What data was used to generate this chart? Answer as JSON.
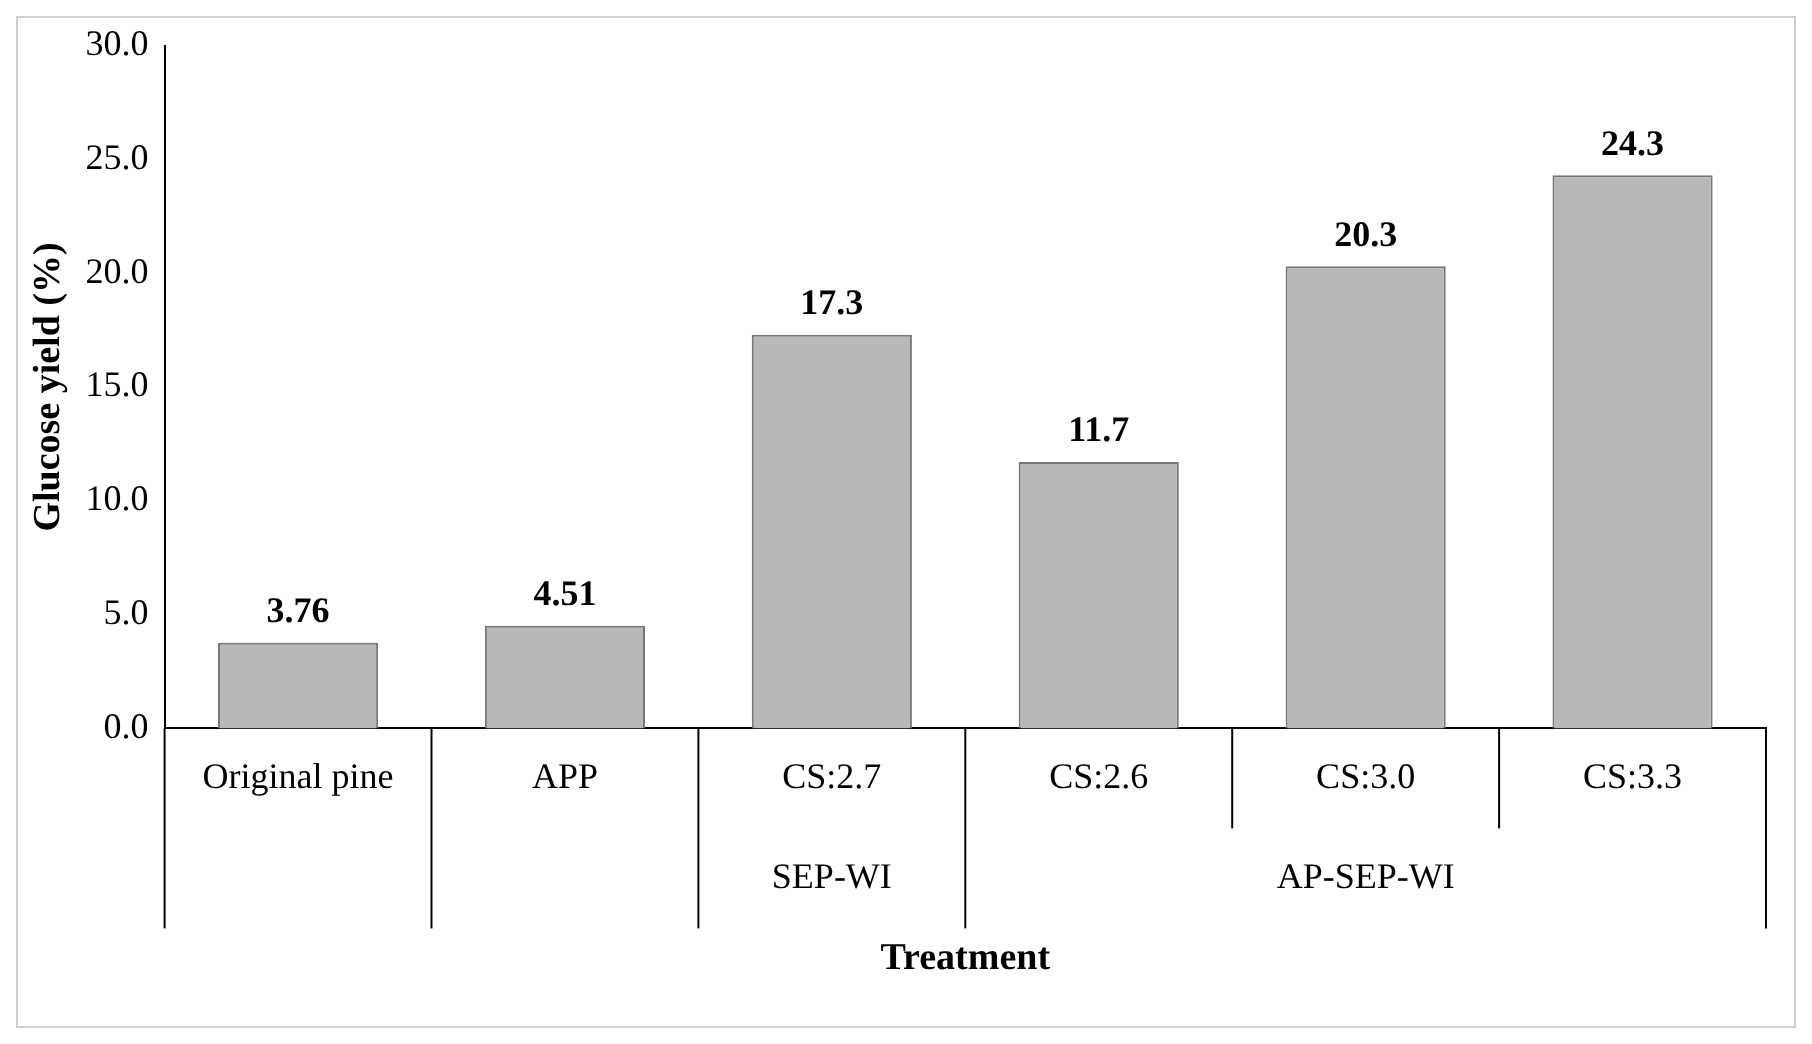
{
  "chart_data": {
    "type": "bar",
    "xlabel": "Treatment",
    "ylabel": "Glucose yield (%)",
    "categories": [
      "Original pine",
      "APP",
      "CS:2.7",
      "CS:2.6",
      "CS:3.0",
      "CS:3.3"
    ],
    "values": [
      3.76,
      4.51,
      17.3,
      11.7,
      20.3,
      24.3
    ],
    "color": "#b8b8b8",
    "data_labels": true,
    "ylim": [
      0,
      30
    ],
    "yticks": [
      {
        "value": 0,
        "label": "0.0"
      },
      {
        "value": 5,
        "label": "5.0"
      },
      {
        "value": 10,
        "label": "10.0"
      },
      {
        "value": 15,
        "label": "15.0"
      },
      {
        "value": 20,
        "label": "20.0"
      },
      {
        "value": 25,
        "label": "25.0"
      },
      {
        "value": 30,
        "label": "30.0"
      }
    ],
    "annotations": [
      "SEP-WI",
      "AP-SEP-WI"
    ]
  }
}
